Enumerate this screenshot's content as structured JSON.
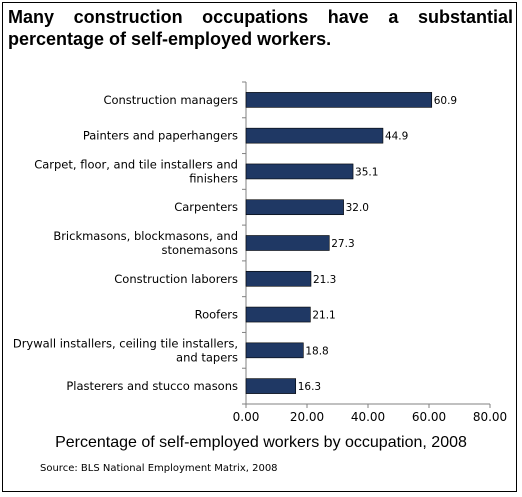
{
  "chart_data": {
    "type": "bar",
    "orientation": "horizontal",
    "title": "Many construction occupations have a substantial percentage of self-employed workers.",
    "xlabel": "Percentage of self-employed workers by occupation, 2008",
    "source": "Source: BLS National Employment Matrix, 2008",
    "categories": [
      "Construction managers",
      "Painters and paperhangers",
      "Carpet, floor, and tile installers and finishers",
      "Carpenters",
      "Brickmasons, blockmasons, and stonemasons",
      "Construction laborers",
      "Roofers",
      "Drywall installers, ceiling tile installers, and tapers",
      "Plasterers and stucco masons"
    ],
    "category_lines": [
      [
        "Construction managers"
      ],
      [
        "Painters and paperhangers"
      ],
      [
        "Carpet, floor, and tile installers and",
        "finishers"
      ],
      [
        "Carpenters"
      ],
      [
        "Brickmasons, blockmasons, and",
        "stonemasons"
      ],
      [
        "Construction laborers"
      ],
      [
        "Roofers"
      ],
      [
        "Drywall installers, ceiling tile installers,",
        "and tapers"
      ],
      [
        "Plasterers and stucco masons"
      ]
    ],
    "values": [
      60.9,
      44.9,
      35.1,
      32.0,
      27.3,
      21.3,
      21.1,
      18.8,
      16.3
    ],
    "value_labels": [
      "60.9",
      "44.9",
      "35.1",
      "32.0",
      "27.3",
      "21.3",
      "21.1",
      "18.8",
      "16.3"
    ],
    "xlim": [
      0,
      80
    ],
    "xticks": [
      "0.00",
      "20.00",
      "40.00",
      "60.00",
      "80.00"
    ],
    "grid": false,
    "bar_color": "#1f3864"
  }
}
